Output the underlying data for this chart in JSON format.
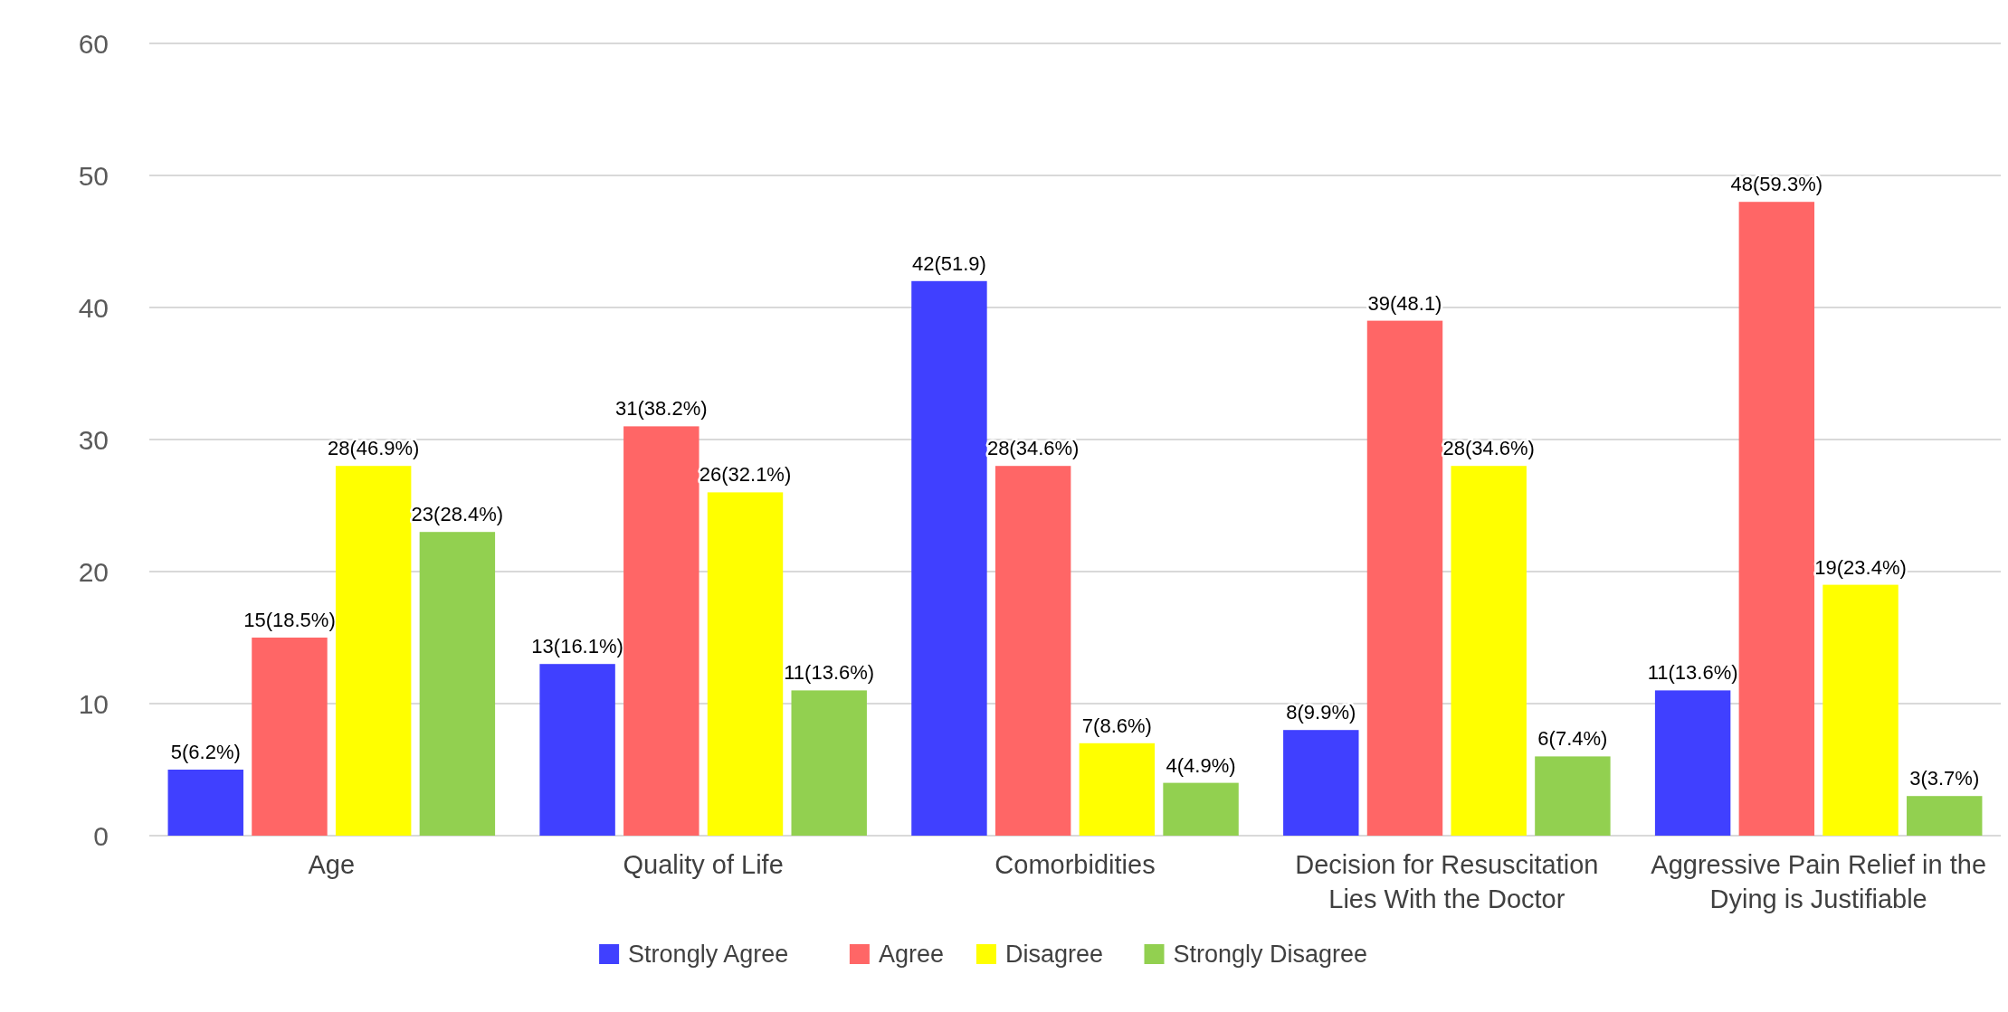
{
  "chart_data": {
    "type": "bar",
    "categories": [
      "Age",
      "Quality of Life",
      "Comorbidities",
      "Decision for Resuscitation Lies With the Doctor",
      "Aggressive Pain Relief in the Dying is Justifiable"
    ],
    "series": [
      {
        "name": "Strongly Agree",
        "color": "#4040ff",
        "values": [
          5,
          13,
          42,
          8,
          11
        ],
        "value_labels": [
          "5(6.2%)",
          "13(16.1%)",
          "42(51.9)",
          "8(9.9%)",
          "11(13.6%)"
        ]
      },
      {
        "name": "Agree",
        "color": "#ff6666",
        "values": [
          15,
          31,
          28,
          39,
          48
        ],
        "value_labels": [
          "15(18.5%)",
          "31(38.2%)",
          "28(34.6%)",
          "39(48.1)",
          "48(59.3%)"
        ]
      },
      {
        "name": "Disagree",
        "color": "#ffff00",
        "values": [
          28,
          26,
          7,
          28,
          19
        ],
        "value_labels": [
          "28(46.9%)",
          "26(32.1%)",
          "7(8.6%)",
          "28(34.6%)",
          "19(23.4%)"
        ]
      },
      {
        "name": "Strongly Disagree",
        "color": "#92d050",
        "values": [
          23,
          11,
          4,
          6,
          3
        ],
        "value_labels": [
          "23(28.4%)",
          "11(13.6%)",
          "4(4.9%)",
          "6(7.4%)",
          "3(3.7%)"
        ]
      }
    ],
    "ylim": [
      0,
      60
    ],
    "yticks": [
      0,
      10,
      20,
      30,
      40,
      50,
      60
    ],
    "grid": "y",
    "legend": "bottom"
  }
}
